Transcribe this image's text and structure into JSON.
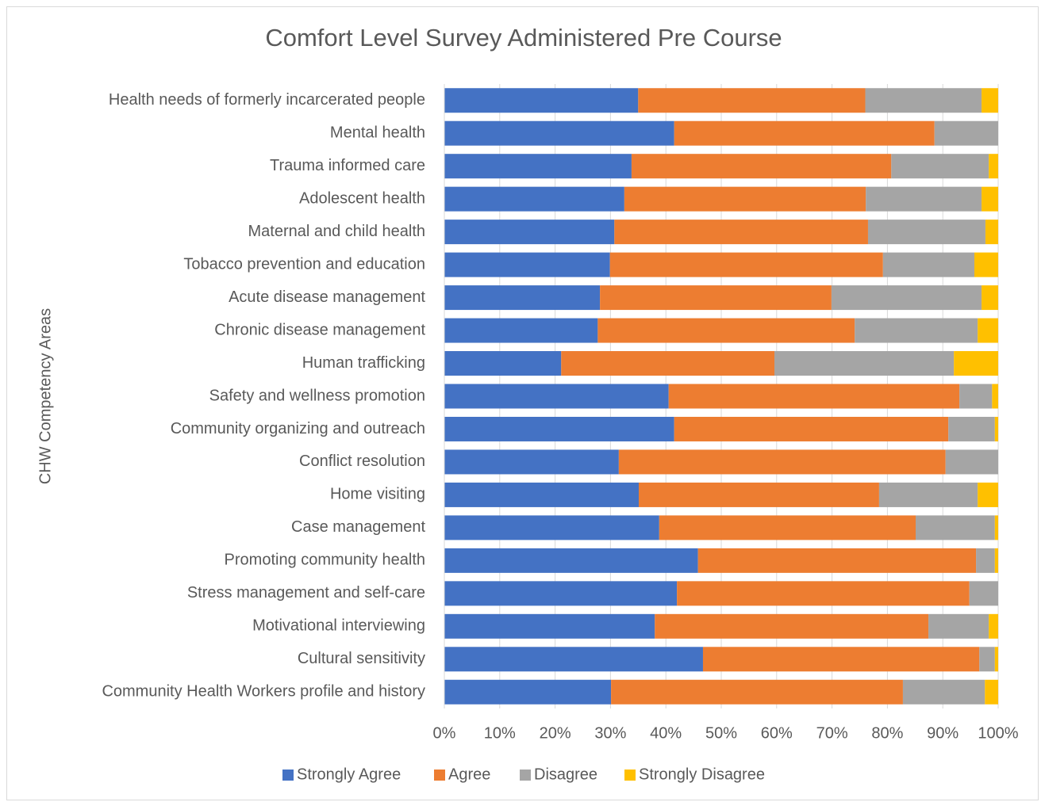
{
  "chart_data": {
    "type": "stacked-bar-horizontal",
    "title": "Comfort Level Survey Administered Pre Course",
    "y_label": "CHW Competency Areas",
    "categories": [
      "Health needs of formerly incarcerated people",
      "Mental health",
      "Trauma informed care",
      "Adolescent health",
      "Maternal and child health",
      "Tobacco prevention and education",
      "Acute disease management",
      "Chronic disease management",
      "Human trafficking",
      "Safety and wellness promotion",
      "Community organizing and outreach",
      "Conflict resolution",
      "Home visiting",
      "Case management",
      "Promoting community health",
      "Stress management and self-care",
      "Motivational interviewing",
      "Cultural sensitivity",
      "Community Health Workers profile and history"
    ],
    "series": [
      {
        "name": "Strongly Agree",
        "color": "#4472c4",
        "values": [
          35,
          41.5,
          33.8,
          32.5,
          30.7,
          29.9,
          28.1,
          27.7,
          21.1,
          40.5,
          41.5,
          31.5,
          35.1,
          38.8,
          45.8,
          42,
          38,
          46.7,
          30.1
        ]
      },
      {
        "name": "Agree",
        "color": "#ed7d31",
        "values": [
          41,
          47,
          46.9,
          43.6,
          45.8,
          49.3,
          41.8,
          46.4,
          38.5,
          52.5,
          49.5,
          59,
          43.4,
          46.3,
          50.2,
          52.8,
          49.4,
          49.9,
          52.7
        ]
      },
      {
        "name": "Disagree",
        "color": "#a5a5a5",
        "values": [
          21,
          11.5,
          17.6,
          20.9,
          21.2,
          16.5,
          27.1,
          22.2,
          32.4,
          5.9,
          8.4,
          9.5,
          17.8,
          14.3,
          3.4,
          5.2,
          10.9,
          2.8,
          14.8
        ]
      },
      {
        "name": "Strongly Disagree",
        "color": "#ffc000",
        "values": [
          3,
          0,
          1.7,
          3,
          2.3,
          4.3,
          3,
          3.7,
          8,
          1.1,
          0.6,
          0,
          3.7,
          0.6,
          0.6,
          0,
          1.7,
          0.6,
          2.4
        ]
      }
    ],
    "xlim": [
      0,
      100
    ],
    "xticks": [
      {
        "value": 0,
        "label": "0%"
      },
      {
        "value": 10,
        "label": "10%"
      },
      {
        "value": 20,
        "label": "20%"
      },
      {
        "value": 30,
        "label": "30%"
      },
      {
        "value": 40,
        "label": "40%"
      },
      {
        "value": 50,
        "label": "50%"
      },
      {
        "value": 60,
        "label": "60%"
      },
      {
        "value": 70,
        "label": "70%"
      },
      {
        "value": 80,
        "label": "80%"
      },
      {
        "value": 90,
        "label": "90%"
      },
      {
        "value": 100,
        "label": "100%"
      }
    ],
    "grid": true,
    "legend": "bottom"
  }
}
